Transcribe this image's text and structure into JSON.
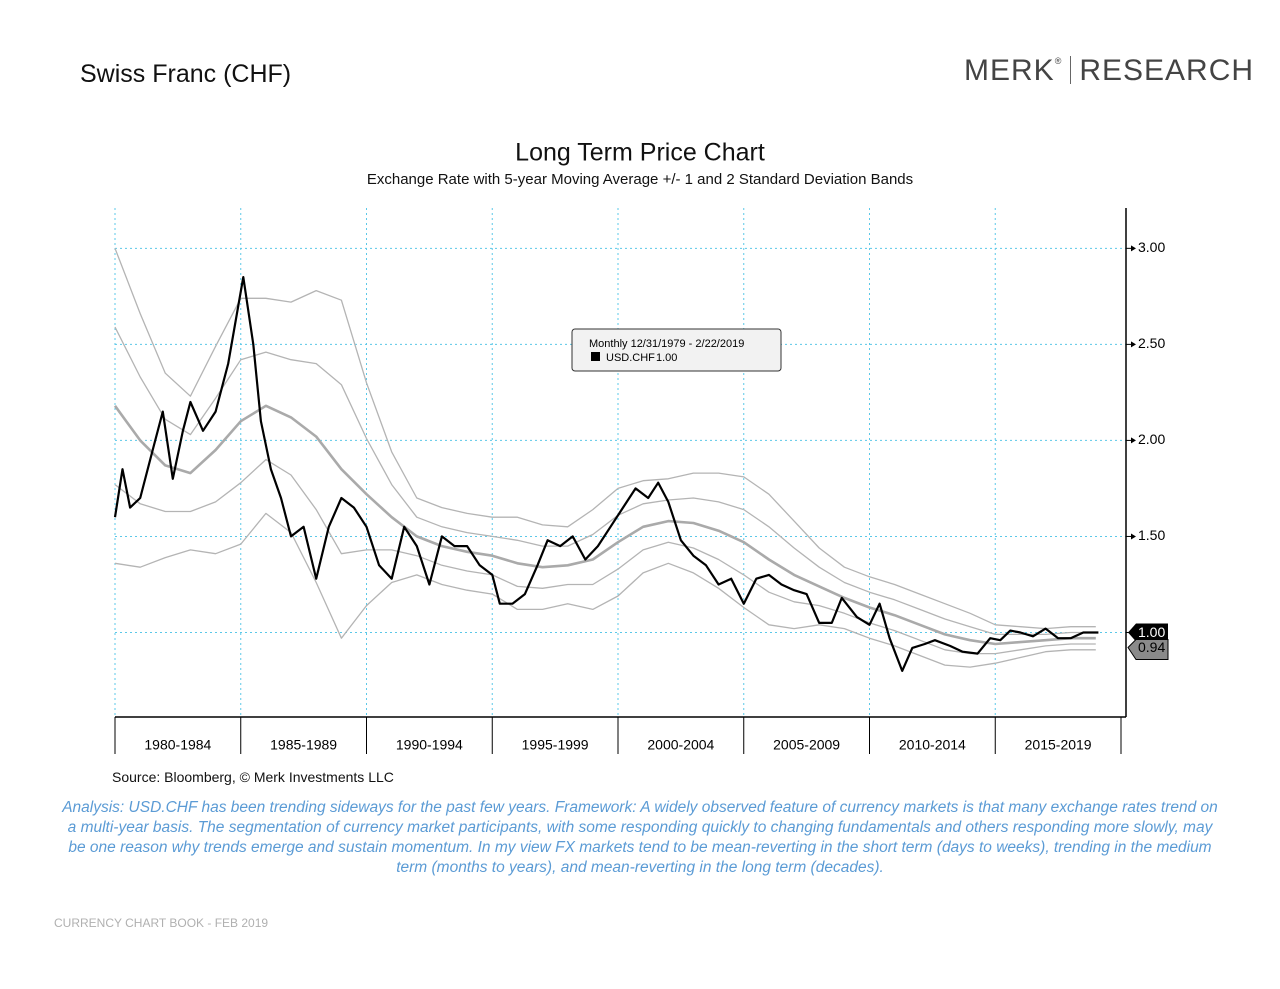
{
  "header": {
    "title": "Swiss Franc (CHF)",
    "logo_main": "MERK",
    "logo_mark": "®",
    "logo_sub": "RESEARCH"
  },
  "source": "Source: Bloomberg, © Merk Investments LLC",
  "analysis": "Analysis: USD.CHF has been trending sideways for the past few years. Framework: A widely observed feature of currency markets is that many exchange rates trend on a multi-year basis. The segmentation of currency market participants, with some responding quickly to changing fundamentals and others responding more slowly, may be one reason why trends emerge and sustain momentum. In my view FX markets tend to be mean-reverting in the short term (days to weeks), trending in the medium term (months to years), and mean-reverting in the long term (decades).",
  "footer": "CURRENCY CHART BOOK - FEB 2019",
  "chart_data": {
    "type": "line",
    "title": "Long Term Price Chart",
    "subtitle": "Exchange Rate with 5-year Moving Average +/- 1 and 2 Standard Deviation Bands",
    "legend_header": "Monthly 12/31/1979 - 2/22/2019",
    "legend_value": "1.00",
    "last_value_labels": [
      "1.00",
      "0.94"
    ],
    "xlim": [
      1980,
      2020
    ],
    "xticks": [
      {
        "value": 1980,
        "label": "1980-1984"
      },
      {
        "value": 1985,
        "label": "1985-1989"
      },
      {
        "value": 1990,
        "label": "1990-1994"
      },
      {
        "value": 1995,
        "label": "1995-1999"
      },
      {
        "value": 2000,
        "label": "2000-2004"
      },
      {
        "value": 2005,
        "label": "2005-2009"
      },
      {
        "value": 2010,
        "label": "2010-2014"
      },
      {
        "value": 2015,
        "label": "2015-2019"
      }
    ],
    "ylim": [
      0.56,
      3.21
    ],
    "yticks": [
      {
        "value": 1,
        "label": "1.00"
      },
      {
        "value": 1.5,
        "label": "1.50"
      },
      {
        "value": 2,
        "label": "2.00"
      },
      {
        "value": 2.5,
        "label": "2.50"
      },
      {
        "value": 3,
        "label": "3.00"
      }
    ],
    "grid": true,
    "series": [
      {
        "color": "#b4b4b4",
        "width": 1.3,
        "x": [
          1980,
          1981,
          1982,
          1983,
          1984,
          1985,
          1986,
          1987,
          1988,
          1989,
          1990,
          1991,
          1992,
          1993,
          1994,
          1995,
          1996,
          1997,
          1998,
          1999,
          2000,
          2001,
          2002,
          2003,
          2004,
          2005,
          2006,
          2007,
          2008,
          2009,
          2010,
          2011,
          2012,
          2013,
          2014,
          2015,
          2016,
          2017,
          2018,
          2019
        ],
        "values": [
          3.0,
          2.66,
          2.35,
          2.23,
          2.49,
          2.74,
          2.74,
          2.72,
          2.78,
          2.73,
          2.3,
          1.94,
          1.7,
          1.65,
          1.62,
          1.6,
          1.6,
          1.56,
          1.55,
          1.64,
          1.75,
          1.79,
          1.8,
          1.83,
          1.83,
          1.81,
          1.72,
          1.58,
          1.44,
          1.34,
          1.29,
          1.25,
          1.2,
          1.15,
          1.1,
          1.04,
          1.03,
          1.02,
          1.03,
          1.03
        ]
      },
      {
        "color": "#b4b4b4",
        "width": 1.3,
        "x": [
          1980,
          1981,
          1982,
          1983,
          1984,
          1985,
          1986,
          1987,
          1988,
          1989,
          1990,
          1991,
          1992,
          1993,
          1994,
          1995,
          1996,
          1997,
          1998,
          1999,
          2000,
          2001,
          2002,
          2003,
          2004,
          2005,
          2006,
          2007,
          2008,
          2009,
          2010,
          2011,
          2012,
          2013,
          2014,
          2015,
          2016,
          2017,
          2018,
          2019
        ],
        "values": [
          2.59,
          2.33,
          2.11,
          2.03,
          2.22,
          2.42,
          2.46,
          2.42,
          2.4,
          2.29,
          2.01,
          1.77,
          1.6,
          1.55,
          1.52,
          1.5,
          1.48,
          1.45,
          1.45,
          1.51,
          1.61,
          1.67,
          1.69,
          1.7,
          1.68,
          1.64,
          1.55,
          1.44,
          1.34,
          1.26,
          1.21,
          1.17,
          1.12,
          1.07,
          1.03,
          0.99,
          0.99,
          0.99,
          1.0,
          1.0
        ]
      },
      {
        "color": "#aaaaaa",
        "width": 2.6,
        "x": [
          1980,
          1981,
          1982,
          1983,
          1984,
          1985,
          1986,
          1987,
          1988,
          1989,
          1990,
          1991,
          1992,
          1993,
          1994,
          1995,
          1996,
          1997,
          1998,
          1999,
          2000,
          2001,
          2002,
          2003,
          2004,
          2005,
          2006,
          2007,
          2008,
          2009,
          2010,
          2011,
          2012,
          2013,
          2014,
          2015,
          2016,
          2017,
          2018,
          2019
        ],
        "values": [
          2.18,
          2.0,
          1.87,
          1.83,
          1.95,
          2.1,
          2.18,
          2.12,
          2.02,
          1.85,
          1.72,
          1.6,
          1.5,
          1.45,
          1.42,
          1.4,
          1.36,
          1.34,
          1.35,
          1.38,
          1.47,
          1.55,
          1.58,
          1.57,
          1.53,
          1.47,
          1.38,
          1.3,
          1.24,
          1.18,
          1.13,
          1.09,
          1.04,
          0.99,
          0.96,
          0.94,
          0.95,
          0.96,
          0.97,
          0.97
        ]
      },
      {
        "color": "#b4b4b4",
        "width": 1.3,
        "x": [
          1980,
          1981,
          1982,
          1983,
          1984,
          1985,
          1986,
          1987,
          1988,
          1989,
          1990,
          1991,
          1992,
          1993,
          1994,
          1995,
          1996,
          1997,
          1998,
          1999,
          2000,
          2001,
          2002,
          2003,
          2004,
          2005,
          2006,
          2007,
          2008,
          2009,
          2010,
          2011,
          2012,
          2013,
          2014,
          2015,
          2016,
          2017,
          2018,
          2019
        ],
        "values": [
          1.77,
          1.67,
          1.63,
          1.63,
          1.68,
          1.78,
          1.9,
          1.82,
          1.64,
          1.41,
          1.43,
          1.43,
          1.4,
          1.35,
          1.32,
          1.3,
          1.24,
          1.23,
          1.25,
          1.25,
          1.33,
          1.43,
          1.47,
          1.44,
          1.38,
          1.3,
          1.21,
          1.16,
          1.14,
          1.1,
          1.05,
          1.01,
          0.96,
          0.91,
          0.89,
          0.89,
          0.91,
          0.93,
          0.94,
          0.94
        ]
      },
      {
        "color": "#b4b4b4",
        "width": 1.3,
        "x": [
          1980,
          1981,
          1982,
          1983,
          1984,
          1985,
          1986,
          1987,
          1988,
          1989,
          1990,
          1991,
          1992,
          1993,
          1994,
          1995,
          1996,
          1997,
          1998,
          1999,
          2000,
          2001,
          2002,
          2003,
          2004,
          2005,
          2006,
          2007,
          2008,
          2009,
          2010,
          2011,
          2012,
          2013,
          2014,
          2015,
          2016,
          2017,
          2018,
          2019
        ],
        "values": [
          1.36,
          1.34,
          1.39,
          1.43,
          1.41,
          1.46,
          1.62,
          1.52,
          1.26,
          0.97,
          1.14,
          1.26,
          1.3,
          1.25,
          1.22,
          1.2,
          1.12,
          1.12,
          1.15,
          1.12,
          1.19,
          1.31,
          1.36,
          1.31,
          1.23,
          1.13,
          1.04,
          1.02,
          1.04,
          1.02,
          0.97,
          0.93,
          0.88,
          0.83,
          0.82,
          0.84,
          0.87,
          0.9,
          0.91,
          0.91
        ]
      },
      {
        "name": "USD.CHF",
        "color": "#000000",
        "width": 2.2,
        "x": [
          1980.0,
          1980.3,
          1980.6,
          1981.0,
          1981.5,
          1981.9,
          1982.3,
          1982.7,
          1983.0,
          1983.5,
          1984.0,
          1984.5,
          1985.1,
          1985.5,
          1985.8,
          1986.2,
          1986.6,
          1987.0,
          1987.5,
          1988.0,
          1988.5,
          1989.0,
          1989.5,
          1990.0,
          1990.5,
          1991.0,
          1991.5,
          1992.0,
          1992.5,
          1993.0,
          1993.5,
          1994.0,
          1994.5,
          1995.0,
          1995.3,
          1995.8,
          1996.3,
          1996.8,
          1997.2,
          1997.7,
          1998.2,
          1998.7,
          1999.2,
          1999.7,
          2000.2,
          2000.7,
          2001.2,
          2001.6,
          2002.0,
          2002.5,
          2003.0,
          2003.5,
          2004.0,
          2004.5,
          2005.0,
          2005.5,
          2006.0,
          2006.5,
          2007.0,
          2007.5,
          2008.0,
          2008.5,
          2008.9,
          2009.5,
          2010.0,
          2010.4,
          2010.8,
          2011.3,
          2011.7,
          2012.2,
          2012.6,
          2013.2,
          2013.7,
          2014.3,
          2014.8,
          2015.2,
          2015.6,
          2016.0,
          2016.5,
          2017.0,
          2017.5,
          2018.0,
          2018.5,
          2019.1
        ],
        "values": [
          1.6,
          1.85,
          1.65,
          1.7,
          1.95,
          2.15,
          1.8,
          2.05,
          2.2,
          2.05,
          2.15,
          2.4,
          2.85,
          2.5,
          2.1,
          1.85,
          1.7,
          1.5,
          1.55,
          1.28,
          1.55,
          1.7,
          1.65,
          1.55,
          1.35,
          1.28,
          1.55,
          1.45,
          1.25,
          1.5,
          1.45,
          1.45,
          1.35,
          1.3,
          1.15,
          1.15,
          1.2,
          1.35,
          1.48,
          1.45,
          1.5,
          1.38,
          1.45,
          1.55,
          1.65,
          1.75,
          1.7,
          1.78,
          1.68,
          1.48,
          1.4,
          1.35,
          1.25,
          1.28,
          1.15,
          1.28,
          1.3,
          1.25,
          1.22,
          1.2,
          1.05,
          1.05,
          1.18,
          1.08,
          1.04,
          1.15,
          0.97,
          0.8,
          0.92,
          0.94,
          0.96,
          0.93,
          0.9,
          0.89,
          0.97,
          0.96,
          1.01,
          1.0,
          0.98,
          1.02,
          0.97,
          0.97,
          1.0,
          1.0
        ]
      }
    ]
  }
}
